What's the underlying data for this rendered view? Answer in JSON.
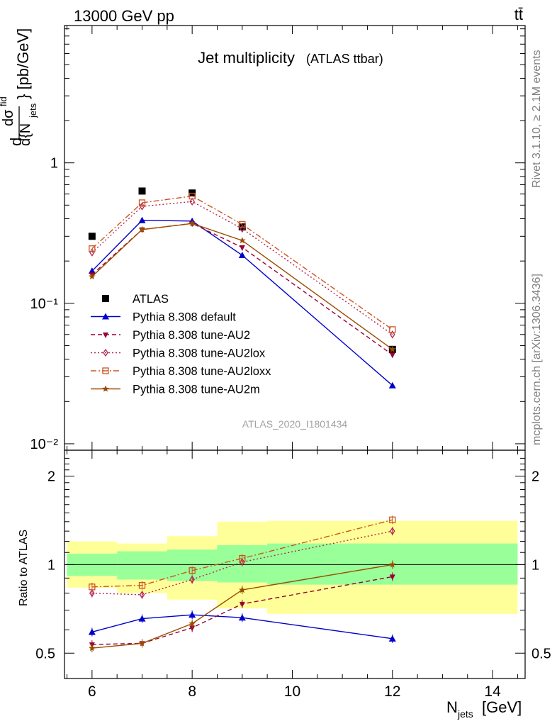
{
  "header": {
    "beam": "13000 GeV pp",
    "process": "tt̄"
  },
  "side_labels": {
    "rivet": "Rivet 3.1.10, ≥ 2.1M events",
    "mcplots": "mcplots.cern.ch [arXiv:1306.3436]"
  },
  "chart_data": [
    {
      "type": "line",
      "panel": "main",
      "title": "Jet multiplicity",
      "subtitle": "(ATLAS ttbar)",
      "analysis_id": "ATLAS_2020_I1801434",
      "xlabel": "N",
      "xlabel_sub": "jets",
      "xlabel_unit": "[GeV]",
      "ylabel": "dσ/d{N_jets} [pb/GeV]",
      "y_scale": "log",
      "xlim": [
        5.45,
        14.65
      ],
      "ylim": [
        0.009,
        9.5
      ],
      "x_ticks": [
        6,
        8,
        10,
        12,
        14
      ],
      "y_ticks": [
        {
          "value": 0.01,
          "label": "10⁻²"
        },
        {
          "value": 0.1,
          "label": "10⁻¹"
        },
        {
          "value": 1,
          "label": "1"
        }
      ],
      "legend_position": "bottom-left",
      "series": [
        {
          "name": "ATLAS",
          "color": "#000000",
          "marker": "square-filled",
          "line": "none",
          "x": [
            6,
            7,
            8,
            9,
            12
          ],
          "y": [
            0.3,
            0.63,
            0.61,
            0.35,
            0.047
          ]
        },
        {
          "name": "Pythia 8.308 default",
          "color": "#0000cc",
          "marker": "triangle-up",
          "line": "solid",
          "x": [
            6,
            7,
            8,
            9,
            12
          ],
          "y": [
            0.17,
            0.39,
            0.385,
            0.22,
            0.026
          ]
        },
        {
          "name": "Pythia 8.308 tune-AU2",
          "color": "#990033",
          "marker": "triangle-down",
          "line": "dashed",
          "x": [
            6,
            7,
            8,
            9,
            12
          ],
          "y": [
            0.16,
            0.335,
            0.37,
            0.25,
            0.043
          ]
        },
        {
          "name": "Pythia 8.308 tune-AU2lox",
          "color": "#b3264d",
          "marker": "diamond-open",
          "line": "dotted",
          "x": [
            6,
            7,
            8,
            9,
            12
          ],
          "y": [
            0.23,
            0.49,
            0.53,
            0.34,
            0.06
          ]
        },
        {
          "name": "Pythia 8.308 tune-AU2loxx",
          "color": "#cc5522",
          "marker": "square-open",
          "line": "dashdot",
          "x": [
            6,
            7,
            8,
            9,
            12
          ],
          "y": [
            0.245,
            0.52,
            0.58,
            0.365,
            0.065
          ]
        },
        {
          "name": "Pythia 8.308 tune-AU2m",
          "color": "#994d00",
          "marker": "star",
          "line": "solid",
          "x": [
            6,
            7,
            8,
            9,
            12
          ],
          "y": [
            0.155,
            0.335,
            0.37,
            0.28,
            0.047
          ]
        }
      ]
    },
    {
      "type": "line",
      "panel": "ratio",
      "ylabel": "Ratio to ATLAS",
      "y_scale": "log",
      "xlim": [
        5.45,
        14.65
      ],
      "ylim": [
        0.41,
        2.45
      ],
      "y_ticks": [
        {
          "value": 0.5,
          "label": "0.5"
        },
        {
          "value": 1,
          "label": "1"
        },
        {
          "value": 2,
          "label": "2"
        }
      ],
      "reference_line": 1,
      "bands": {
        "inner_color": "#99ff99",
        "outer_color": "#ffff99",
        "bins": [
          {
            "x": [
              5.5,
              6.5
            ],
            "inner": [
              0.915,
              1.09
            ],
            "outer": [
              0.835,
              1.2
            ]
          },
          {
            "x": [
              6.5,
              7.5
            ],
            "inner": [
              0.89,
              1.11
            ],
            "outer": [
              0.8,
              1.18
            ]
          },
          {
            "x": [
              7.5,
              8.5
            ],
            "inner": [
              0.88,
              1.125
            ],
            "outer": [
              0.76,
              1.25
            ]
          },
          {
            "x": [
              8.5,
              9.5
            ],
            "inner": [
              0.87,
              1.165
            ],
            "outer": [
              0.71,
              1.4
            ]
          },
          {
            "x": [
              9.5,
              14.5
            ],
            "inner": [
              0.855,
              1.18
            ],
            "outer": [
              0.68,
              1.41
            ]
          }
        ]
      },
      "series": [
        {
          "name": "Pythia 8.308 default",
          "color": "#0000cc",
          "marker": "triangle-up",
          "line": "solid",
          "x": [
            6,
            7,
            8,
            9,
            12
          ],
          "y": [
            0.59,
            0.655,
            0.675,
            0.66,
            0.56
          ]
        },
        {
          "name": "Pythia 8.308 tune-AU2",
          "color": "#990033",
          "marker": "triangle-down",
          "line": "dashed",
          "x": [
            6,
            7,
            8,
            9,
            12
          ],
          "y": [
            0.535,
            0.54,
            0.61,
            0.735,
            0.91
          ]
        },
        {
          "name": "Pythia 8.308 tune-AU2lox",
          "color": "#b3264d",
          "marker": "diamond-open",
          "line": "dotted",
          "x": [
            6,
            7,
            8,
            9,
            12
          ],
          "y": [
            0.8,
            0.79,
            0.89,
            1.02,
            1.3
          ]
        },
        {
          "name": "Pythia 8.308 tune-AU2loxx",
          "color": "#cc5522",
          "marker": "square-open",
          "line": "dashdot",
          "x": [
            6,
            7,
            8,
            9,
            12
          ],
          "y": [
            0.84,
            0.85,
            0.955,
            1.05,
            1.42
          ]
        },
        {
          "name": "Pythia 8.308 tune-AU2m",
          "color": "#994d00",
          "marker": "star",
          "line": "solid",
          "x": [
            6,
            7,
            8,
            9,
            12
          ],
          "y": [
            0.52,
            0.54,
            0.63,
            0.82,
            1.0
          ]
        }
      ]
    }
  ]
}
